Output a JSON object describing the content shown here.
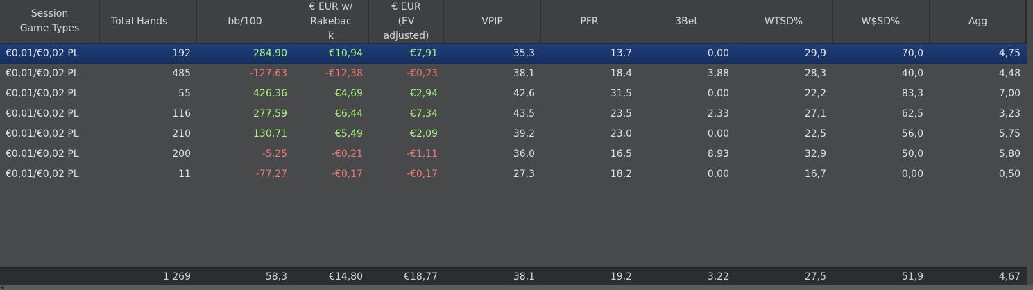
{
  "columns": [
    {
      "key": "game",
      "label": "Session\nGame Types"
    },
    {
      "key": "hands",
      "label": "Total Hands"
    },
    {
      "key": "bb100",
      "label": "bb/100"
    },
    {
      "key": "eur_rb",
      "label": "€ EUR w/\nRakebac\nk"
    },
    {
      "key": "eur_ev",
      "label": "€ EUR\n(EV\nadjusted)"
    },
    {
      "key": "vpip",
      "label": "VPIP"
    },
    {
      "key": "pfr",
      "label": "PFR"
    },
    {
      "key": "threebet",
      "label": "3Bet"
    },
    {
      "key": "wtsd",
      "label": "WTSD%"
    },
    {
      "key": "wsd",
      "label": "W$SD%"
    },
    {
      "key": "agg",
      "label": "Agg"
    }
  ],
  "rows": [
    {
      "game": "€0,01/€0,02 PL",
      "hands": "192",
      "bb100": "284,90",
      "eur_rb": "€10,94",
      "eur_ev": "€7,91",
      "vpip": "35,3",
      "pfr": "13,7",
      "threebet": "0,00",
      "wtsd": "29,9",
      "wsd": "70,0",
      "agg": "4,75",
      "selected": true
    },
    {
      "game": "€0,01/€0,02 PL",
      "hands": "485",
      "bb100": "-127,63",
      "eur_rb": "-€12,38",
      "eur_ev": "-€0,23",
      "vpip": "38,1",
      "pfr": "18,4",
      "threebet": "3,88",
      "wtsd": "28,3",
      "wsd": "40,0",
      "agg": "4,48"
    },
    {
      "game": "€0,01/€0,02 PL",
      "hands": "55",
      "bb100": "426,36",
      "eur_rb": "€4,69",
      "eur_ev": "€2,94",
      "vpip": "42,6",
      "pfr": "31,5",
      "threebet": "0,00",
      "wtsd": "22,2",
      "wsd": "83,3",
      "agg": "7,00"
    },
    {
      "game": "€0,01/€0,02 PL",
      "hands": "116",
      "bb100": "277,59",
      "eur_rb": "€6,44",
      "eur_ev": "€7,34",
      "vpip": "43,5",
      "pfr": "23,5",
      "threebet": "2,33",
      "wtsd": "27,1",
      "wsd": "62,5",
      "agg": "3,23"
    },
    {
      "game": "€0,01/€0,02 PL",
      "hands": "210",
      "bb100": "130,71",
      "eur_rb": "€5,49",
      "eur_ev": "€2,09",
      "vpip": "39,2",
      "pfr": "23,0",
      "threebet": "0,00",
      "wtsd": "22,5",
      "wsd": "56,0",
      "agg": "5,75"
    },
    {
      "game": "€0,01/€0,02 PL",
      "hands": "200",
      "bb100": "-5,25",
      "eur_rb": "-€0,21",
      "eur_ev": "-€1,11",
      "vpip": "36,0",
      "pfr": "16,5",
      "threebet": "8,93",
      "wtsd": "32,9",
      "wsd": "50,0",
      "agg": "5,80"
    },
    {
      "game": "€0,01/€0,02 PL",
      "hands": "11",
      "bb100": "-77,27",
      "eur_rb": "-€0,17",
      "eur_ev": "-€0,17",
      "vpip": "27,3",
      "pfr": "18,2",
      "threebet": "0,00",
      "wtsd": "16,7",
      "wsd": "0,00",
      "agg": "0,50"
    }
  ],
  "totals": {
    "game": "",
    "hands": "1 269",
    "bb100": "58,3",
    "eur_rb": "€14,80",
    "eur_ev": "€18,77",
    "vpip": "38,1",
    "pfr": "19,2",
    "threebet": "3,22",
    "wtsd": "27,5",
    "wsd": "51,9",
    "agg": "4,67"
  },
  "colors": {
    "positive": "#a8f07a",
    "negative": "#f07575",
    "selected_row": "#1f3f7a"
  },
  "scrollbar": {
    "left_arrow_icon": "scroll-left-icon"
  }
}
